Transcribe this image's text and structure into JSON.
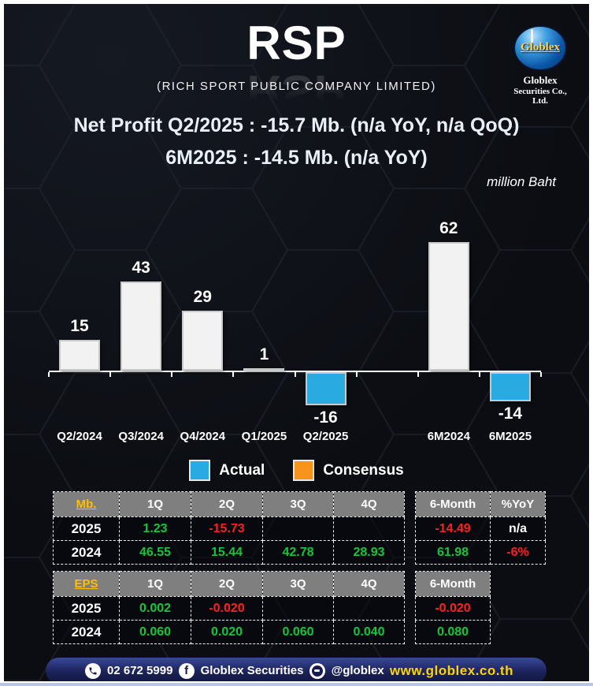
{
  "header": {
    "ticker": "RSP",
    "company": "(RICH SPORT PUBLIC COMPANY LIMITED)",
    "logo": {
      "brand": "Globlex",
      "line1": "Globlex",
      "line2": "Securities Co., Ltd."
    }
  },
  "summary": {
    "line1": "Net Profit  Q2/2025 : -15.7 Mb. (n/a YoY, n/a QoQ)",
    "line2": "6M2025 : -14.5 Mb. (n/a YoY)",
    "unit_note": "million Baht"
  },
  "chart_data": {
    "type": "bar",
    "title": "Net Profit by period",
    "ylabel": "million Baht",
    "categories": [
      "Q2/2024",
      "Q3/2024",
      "Q4/2024",
      "Q1/2025",
      "Q2/2025",
      "6M2024",
      "6M2025"
    ],
    "values": [
      15,
      43,
      29,
      1,
      -16,
      62,
      -14
    ],
    "slots": [
      0,
      1,
      2,
      3,
      4,
      6,
      7
    ],
    "bar_colors": [
      "#f2f2f2",
      "#f2f2f2",
      "#f2f2f2",
      "#f2f2f2",
      "#29abe2",
      "#f2f2f2",
      "#29abe2"
    ],
    "baseline": 0,
    "ylim": [
      -20,
      70
    ],
    "grid": false,
    "legend_position": "bottom",
    "legend": [
      {
        "label": "Actual",
        "color": "#29abe2"
      },
      {
        "label": "Consensus",
        "color": "#f7941e"
      }
    ]
  },
  "tables": {
    "quarterly": {
      "label": "Mb.",
      "columns": [
        "1Q",
        "2Q",
        "3Q",
        "4Q"
      ],
      "extra_columns": [
        "6-Month",
        "%YoY"
      ],
      "rows": [
        {
          "year": "2025",
          "cells": [
            {
              "v": "1.23",
              "c": "green"
            },
            {
              "v": "-15.73",
              "c": "red"
            },
            {
              "v": "",
              "c": ""
            },
            {
              "v": "",
              "c": ""
            }
          ],
          "extra": [
            {
              "v": "-14.49",
              "c": "red"
            },
            {
              "v": "n/a",
              "c": "white"
            }
          ]
        },
        {
          "year": "2024",
          "cells": [
            {
              "v": "46.55",
              "c": "green"
            },
            {
              "v": "15.44",
              "c": "green"
            },
            {
              "v": "42.78",
              "c": "green"
            },
            {
              "v": "28.93",
              "c": "green"
            }
          ],
          "extra": [
            {
              "v": "61.98",
              "c": "green"
            },
            {
              "v": "-6%",
              "c": "red"
            }
          ]
        }
      ]
    },
    "eps": {
      "label": "EPS",
      "columns": [
        "1Q",
        "2Q",
        "3Q",
        "4Q"
      ],
      "extra_columns": [
        "6-Month"
      ],
      "rows": [
        {
          "year": "2025",
          "cells": [
            {
              "v": "0.002",
              "c": "green"
            },
            {
              "v": "-0.020",
              "c": "red"
            },
            {
              "v": "",
              "c": ""
            },
            {
              "v": "",
              "c": ""
            }
          ],
          "extra": [
            {
              "v": "-0.020",
              "c": "red"
            }
          ]
        },
        {
          "year": "2024",
          "cells": [
            {
              "v": "0.060",
              "c": "green"
            },
            {
              "v": "0.020",
              "c": "green"
            },
            {
              "v": "0.060",
              "c": "green"
            },
            {
              "v": "0.040",
              "c": "green"
            }
          ],
          "extra": [
            {
              "v": "0.080",
              "c": "green"
            }
          ]
        }
      ]
    }
  },
  "footer": {
    "phone": "02 672 5999",
    "facebook": "Globlex Securities",
    "line": "@globlex",
    "website": "www.globlex.co.th"
  },
  "icon_glyphs": {
    "facebook": "f"
  },
  "colors": {
    "actual_blue": "#29abe2",
    "consensus_orange": "#f7941e",
    "table_header_gray": "#7f7f7f",
    "gold": "#ffc000",
    "positive_green": "#12c735",
    "negative_red": "#ff1f1f",
    "website_yellow": "#ffd400",
    "footer_navy": "#1b2258"
  }
}
